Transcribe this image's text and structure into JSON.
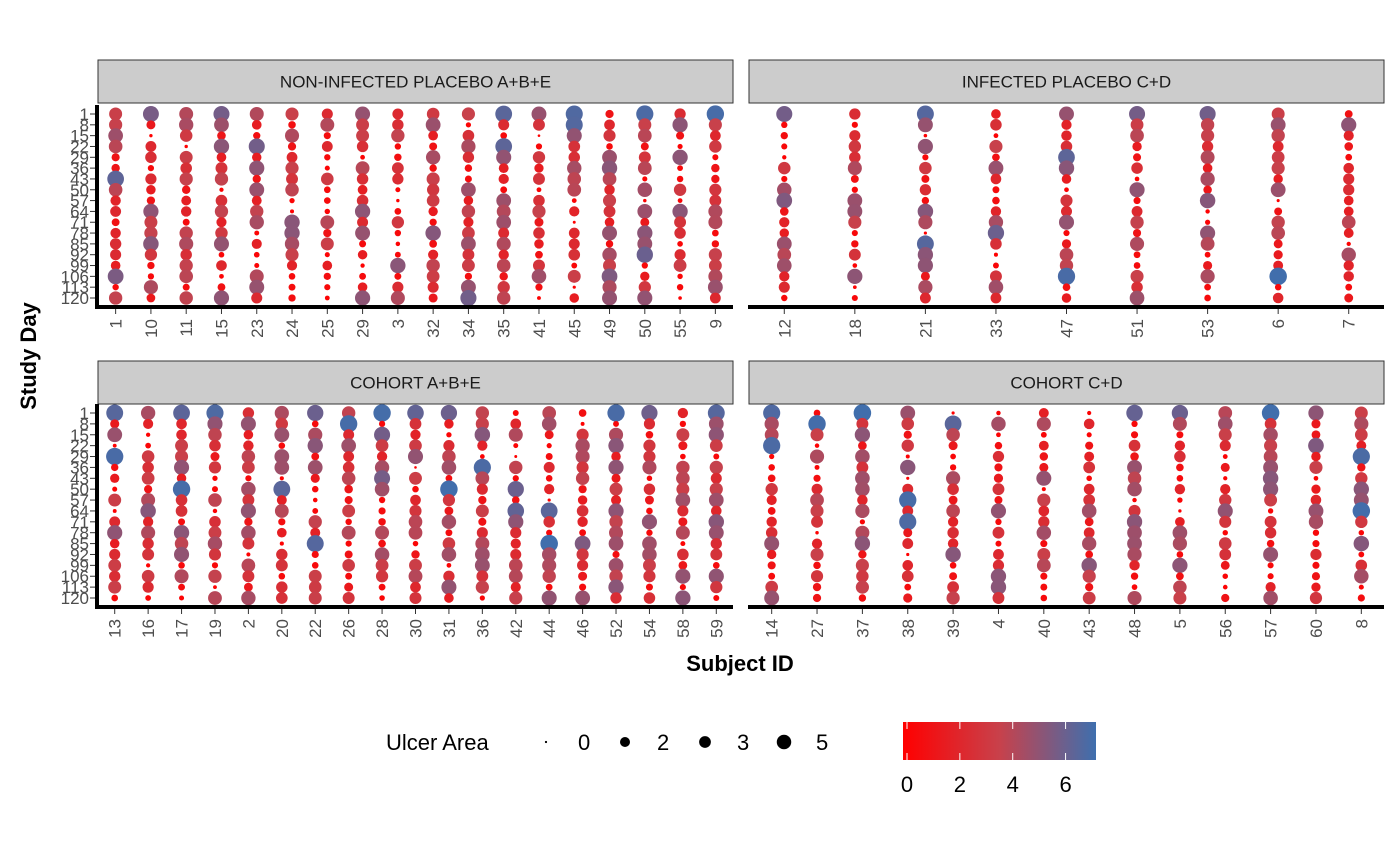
{
  "chart_data": {
    "type": "scatter",
    "subtype": "faceted-dot-plot",
    "x_label": "Subject ID",
    "y_label": "Study Day",
    "facets": [
      {
        "title": "NON-INFECTED PLACEBO A+B+E",
        "subjects": [
          "1",
          "10",
          "11",
          "15",
          "23",
          "24",
          "25",
          "29",
          "3",
          "32",
          "34",
          "35",
          "41",
          "45",
          "49",
          "50",
          "55",
          "9"
        ],
        "days": [
          "1",
          "8",
          "15",
          "22",
          "29",
          "36",
          "43",
          "50",
          "57",
          "64",
          "71",
          "78",
          "85",
          "92",
          "99",
          "106",
          "113",
          "120"
        ]
      },
      {
        "title": "INFECTED PLACEBO C+D",
        "subjects": [
          "12",
          "18",
          "21",
          "33",
          "47",
          "51",
          "53",
          "6",
          "7"
        ],
        "days": [
          "1",
          "8",
          "15",
          "22",
          "29",
          "36",
          "43",
          "50",
          "57",
          "64",
          "71",
          "78",
          "85",
          "92",
          "99",
          "106",
          "113",
          "120"
        ]
      },
      {
        "title": "COHORT A+B+E",
        "subjects": [
          "13",
          "16",
          "17",
          "19",
          "2",
          "20",
          "22",
          "26",
          "28",
          "30",
          "31",
          "36",
          "42",
          "44",
          "46",
          "52",
          "54",
          "58",
          "59"
        ],
        "days": [
          "1",
          "8",
          "15",
          "22",
          "29",
          "36",
          "43",
          "50",
          "57",
          "64",
          "71",
          "78",
          "85",
          "92",
          "99",
          "106",
          "113",
          "120"
        ]
      },
      {
        "title": "COHORT C+D",
        "subjects": [
          "14",
          "27",
          "37",
          "38",
          "39",
          "4",
          "40",
          "43",
          "48",
          "5",
          "56",
          "57",
          "60",
          "8"
        ],
        "days": [
          "1",
          "8",
          "15",
          "22",
          "29",
          "36",
          "43",
          "50",
          "57",
          "64",
          "71",
          "78",
          "85",
          "92",
          "99",
          "106",
          "113",
          "120"
        ]
      }
    ],
    "legend": {
      "size_title": "Ulcer Area",
      "size_breaks": [
        0,
        2,
        3,
        5
      ],
      "size_labels": [
        "0",
        "2",
        "3",
        "5"
      ],
      "color_breaks": [
        0,
        2,
        4,
        6
      ],
      "color_labels": [
        "0",
        "2",
        "4",
        "6"
      ],
      "color_range": [
        0,
        7
      ],
      "color_low": "#FF0000",
      "color_mid": "#C8414B",
      "color_high": "#3E6FAE"
    },
    "value_range": [
      0,
      7
    ]
  }
}
